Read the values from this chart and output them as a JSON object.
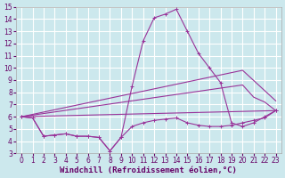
{
  "xlabel": "Windchill (Refroidissement éolien,°C)",
  "background_color": "#cce8ed",
  "grid_color": "#ffffff",
  "line_color": "#993399",
  "xlim": [
    -0.5,
    23.5
  ],
  "ylim": [
    3,
    15
  ],
  "xticks": [
    0,
    1,
    2,
    3,
    4,
    5,
    6,
    7,
    8,
    9,
    10,
    11,
    12,
    13,
    14,
    15,
    16,
    17,
    18,
    19,
    20,
    21,
    22,
    23
  ],
  "yticks": [
    3,
    4,
    5,
    6,
    7,
    8,
    9,
    10,
    11,
    12,
    13,
    14,
    15
  ],
  "line1_x": [
    0,
    1,
    2,
    3,
    4,
    5,
    6,
    7,
    8,
    9,
    10,
    11,
    12,
    13,
    14,
    15,
    16,
    17,
    18,
    19,
    20,
    21,
    22,
    23
  ],
  "line1_y": [
    6.0,
    5.9,
    4.4,
    4.5,
    4.6,
    4.4,
    4.4,
    4.3,
    3.2,
    4.3,
    8.5,
    12.2,
    14.1,
    14.4,
    14.8,
    13.0,
    11.2,
    10.0,
    8.8,
    5.5,
    5.2,
    5.5,
    6.0,
    6.5
  ],
  "line2_x": [
    0,
    1,
    2,
    3,
    4,
    5,
    6,
    7,
    8,
    9,
    10,
    11,
    12,
    13,
    14,
    15,
    16,
    17,
    18,
    19,
    20,
    21,
    22,
    23
  ],
  "line2_y": [
    6.0,
    5.9,
    4.4,
    4.5,
    4.6,
    4.4,
    4.4,
    4.3,
    3.2,
    4.3,
    5.2,
    5.5,
    5.7,
    5.8,
    5.9,
    5.5,
    5.3,
    5.2,
    5.2,
    5.3,
    5.5,
    5.7,
    5.9,
    6.5
  ],
  "line3_x": [
    0,
    23
  ],
  "line3_y": [
    6.0,
    6.5
  ],
  "line4_x": [
    0,
    20,
    23
  ],
  "line4_y": [
    6.0,
    9.8,
    7.3
  ],
  "line5_x": [
    0,
    20,
    21,
    22,
    23
  ],
  "line5_y": [
    6.0,
    8.6,
    7.6,
    7.2,
    6.5
  ],
  "tick_fontsize": 5.5,
  "label_fontsize": 6.5
}
